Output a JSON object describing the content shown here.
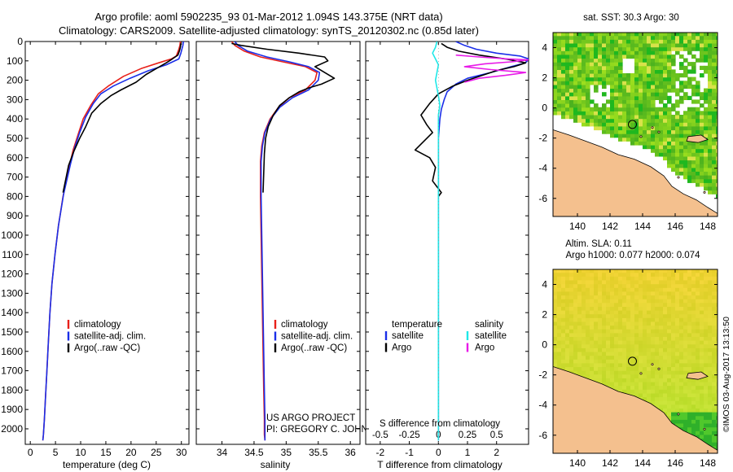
{
  "title": {
    "line1": "Argo profile: aoml 5902235_93 01-Mar-2012 1.094S 143.375E (NRT data)",
    "line2": "Climatology: CARS2009. Satellite-adjusted climatology: synTS_20120302.nc (0.85d later)"
  },
  "side_stamp": "©IMOS 03-Aug-2017 13:13:50",
  "colors": {
    "climatology": "#e8201a",
    "satellite": "#1a2ee8",
    "argo": "#000000",
    "sal_satellite": "#1ee8e8",
    "sal_argo": "#e81ae8",
    "land": "#f4c08e",
    "sst_green": "#3fcf25",
    "sla_green": "#b4e62e"
  },
  "chart_data": [
    {
      "id": "temperature",
      "type": "line",
      "xlabel": "temperature (deg C)",
      "ylabel": "",
      "xlim": [
        -1,
        31.5
      ],
      "ylim": [
        2080,
        0
      ],
      "y_inverted": true,
      "xticks": [
        0,
        5,
        10,
        15,
        20,
        25,
        30
      ],
      "yticks": [
        0,
        100,
        200,
        300,
        400,
        500,
        600,
        700,
        800,
        900,
        1000,
        1100,
        1200,
        1300,
        1400,
        1500,
        1600,
        1700,
        1800,
        1900,
        2000
      ],
      "legend": [
        "climatology",
        "satellite-adj. clim.",
        "Argo(..raw -QC)"
      ],
      "series": [
        {
          "name": "climatology",
          "color_key": "climatology",
          "x": [
            29.8,
            29.7,
            29.5,
            29.2,
            29.0,
            28.0,
            25.5,
            22.0,
            18.5,
            15.5,
            13.5,
            12.0,
            10.5,
            9.5,
            8.5,
            7.8,
            6.5,
            5.6,
            4.9,
            4.3,
            3.9,
            3.6,
            3.3,
            3.0,
            2.8,
            2.6,
            2.5
          ],
          "y": [
            0,
            20,
            40,
            60,
            75,
            90,
            110,
            140,
            180,
            230,
            270,
            330,
            400,
            480,
            560,
            640,
            800,
            950,
            1100,
            1250,
            1400,
            1550,
            1700,
            1850,
            1950,
            2030,
            2060
          ]
        },
        {
          "name": "satellite-adj. clim.",
          "color_key": "satellite",
          "x": [
            30.4,
            30.3,
            30.1,
            29.9,
            29.5,
            27.0,
            23.5,
            19.8,
            16.5,
            14.0,
            12.5,
            11.0,
            9.8,
            8.8,
            8.0,
            6.6,
            5.6,
            4.9,
            4.3,
            3.9,
            3.6,
            3.3,
            3.0,
            2.8,
            2.6,
            2.5
          ],
          "y": [
            0,
            20,
            40,
            60,
            90,
            120,
            150,
            190,
            230,
            270,
            320,
            390,
            470,
            550,
            630,
            790,
            950,
            1100,
            1250,
            1400,
            1550,
            1700,
            1850,
            1950,
            2030,
            2060
          ]
        },
        {
          "name": "Argo(..raw -QC)",
          "color_key": "argo",
          "x": [
            29.9,
            29.8,
            29.6,
            29.3,
            28.2,
            27.0,
            25.0,
            23.0,
            21.0,
            18.0,
            16.0,
            14.0,
            12.2,
            11.0,
            9.8,
            8.6,
            7.6,
            6.5
          ],
          "y": [
            10,
            30,
            50,
            70,
            90,
            110,
            140,
            170,
            210,
            250,
            280,
            320,
            370,
            440,
            500,
            570,
            640,
            780
          ]
        }
      ]
    },
    {
      "id": "salinity",
      "type": "line",
      "xlabel": "salinity",
      "ylabel": "",
      "xlim": [
        33.6,
        36.15
      ],
      "ylim": [
        2080,
        0
      ],
      "y_inverted": true,
      "xticks": [
        34,
        34.5,
        35,
        35.5,
        36
      ],
      "legend": [
        "climatology",
        "satellite-adj. clim.",
        "Argo(..raw -QC)"
      ],
      "annotation_line1": "US ARGO PROJECT",
      "annotation_line2": "PI: GREGORY C. JOHNSON",
      "series": [
        {
          "name": "climatology",
          "color_key": "climatology",
          "x": [
            34.15,
            34.2,
            34.35,
            34.6,
            34.95,
            35.3,
            35.48,
            35.45,
            35.3,
            35.05,
            34.88,
            34.75,
            34.66,
            34.62,
            34.6,
            34.6,
            34.61,
            34.62,
            34.63,
            34.64,
            34.65,
            34.66,
            34.66,
            34.67
          ],
          "y": [
            0,
            20,
            50,
            80,
            105,
            130,
            160,
            200,
            250,
            290,
            340,
            400,
            470,
            540,
            620,
            800,
            1000,
            1200,
            1400,
            1600,
            1800,
            1950,
            2030,
            2060
          ]
        },
        {
          "name": "satellite-adj. clim.",
          "color_key": "satellite",
          "x": [
            34.2,
            34.25,
            34.4,
            34.7,
            35.05,
            35.35,
            35.52,
            35.5,
            35.35,
            35.1,
            34.9,
            34.76,
            34.67,
            34.63,
            34.61,
            34.61,
            34.62,
            34.63,
            34.64,
            34.65,
            34.66,
            34.67,
            34.67
          ],
          "y": [
            0,
            20,
            50,
            80,
            105,
            130,
            160,
            200,
            250,
            290,
            340,
            400,
            470,
            540,
            620,
            800,
            1000,
            1200,
            1400,
            1600,
            1800,
            1950,
            2060
          ]
        },
        {
          "name": "Argo(..raw -QC)",
          "color_key": "argo",
          "x": [
            34.15,
            34.3,
            34.7,
            35.2,
            35.6,
            35.65,
            35.45,
            35.6,
            35.75,
            35.55,
            35.35,
            35.2,
            35.05,
            34.9,
            34.8,
            34.72,
            34.68,
            34.66,
            34.65,
            34.64
          ],
          "y": [
            10,
            20,
            40,
            60,
            80,
            100,
            130,
            160,
            190,
            220,
            240,
            260,
            290,
            330,
            380,
            440,
            500,
            580,
            680,
            780
          ]
        }
      ]
    },
    {
      "id": "difference",
      "type": "line",
      "xlabel": "T difference from climatology",
      "top_xlabel": "S difference from climatology",
      "xlim": [
        -2.5,
        3.1
      ],
      "ylim": [
        2080,
        0
      ],
      "y_inverted": true,
      "xticks": [
        -2,
        -1,
        0,
        1,
        2
      ],
      "top_ticks_labels": [
        "-0.5",
        "-0.25",
        "0",
        "0.25",
        "0.5"
      ],
      "top_ticks_pos": [
        -2,
        -1,
        0,
        1,
        2
      ],
      "legend_left_title": "temperature",
      "legend_right_title": "salinity",
      "legend_left": [
        "satellite",
        "Argo"
      ],
      "legend_right": [
        "satellite",
        "Argo"
      ],
      "series": [
        {
          "name": "temperature satellite",
          "color_key": "satellite",
          "x": [
            0.6,
            0.9,
            1.3,
            2.0,
            2.8,
            3.1,
            3.0,
            2.5,
            1.8,
            1.0,
            0.6,
            0.3,
            0.2,
            0.1,
            0.05,
            0.0,
            0.0,
            0.0,
            0.0,
            0.0,
            0.0
          ],
          "y": [
            0,
            20,
            40,
            60,
            75,
            90,
            110,
            130,
            160,
            190,
            220,
            260,
            300,
            350,
            400,
            500,
            800,
            1200,
            1600,
            2000,
            2060
          ]
        },
        {
          "name": "temperature Argo",
          "color_key": "argo",
          "x": [
            0.1,
            0.3,
            0.7,
            1.4,
            2.3,
            3.0,
            2.6,
            2.0,
            1.6,
            1.0,
            0.5,
            0.0,
            -0.3,
            -0.6,
            -0.4,
            -0.2,
            -0.8,
            -0.3,
            -0.1,
            -0.2,
            0.1,
            0.0
          ],
          "y": [
            10,
            30,
            50,
            70,
            90,
            110,
            130,
            150,
            170,
            200,
            230,
            270,
            320,
            380,
            430,
            470,
            560,
            600,
            650,
            720,
            780,
            800
          ]
        },
        {
          "name": "salinity satellite",
          "color_key": "sal_satellite",
          "x": [
            -0.05,
            -0.1,
            -0.2,
            -0.1,
            0.0,
            -0.05,
            -0.1,
            -0.05,
            0.0,
            0.05,
            0.0,
            0.0,
            0.0,
            0.0,
            0.0,
            0.0
          ],
          "y": [
            0,
            30,
            60,
            90,
            120,
            160,
            200,
            240,
            280,
            330,
            380,
            500,
            800,
            1200,
            1600,
            2060
          ]
        },
        {
          "name": "salinity Argo",
          "color_key": "sal_argo",
          "x": [
            0.6,
            1.4,
            2.4,
            3.1,
            2.5,
            1.6,
            0.9,
            1.8,
            3.0,
            2.3,
            1.4,
            0.9
          ],
          "y": [
            70,
            80,
            90,
            95,
            105,
            115,
            130,
            145,
            160,
            175,
            190,
            210
          ]
        }
      ]
    },
    {
      "id": "sst_map",
      "type": "heatmap",
      "title": "sat. SST: 30.3 Argo: 30",
      "xticks": [
        140,
        142,
        144,
        146,
        148
      ],
      "yticks": [
        4,
        2,
        0,
        -2,
        -4,
        -6
      ],
      "xlim": [
        138.5,
        148.6
      ],
      "ylim": [
        -7.2,
        5.0
      ],
      "argo_marker": {
        "lon": 143.375,
        "lat": -1.094
      }
    },
    {
      "id": "sla_map",
      "type": "heatmap",
      "title_line1": "Altim. SLA: 0.11",
      "title_line2": "Argo h1000: 0.077 h2000: 0.074",
      "xticks": [
        140,
        142,
        144,
        146,
        148
      ],
      "yticks": [
        4,
        2,
        0,
        -2,
        -4,
        -6
      ],
      "xlim": [
        138.5,
        148.6
      ],
      "ylim": [
        -7.2,
        5.0
      ],
      "argo_marker": {
        "lon": 143.375,
        "lat": -1.094
      }
    }
  ]
}
